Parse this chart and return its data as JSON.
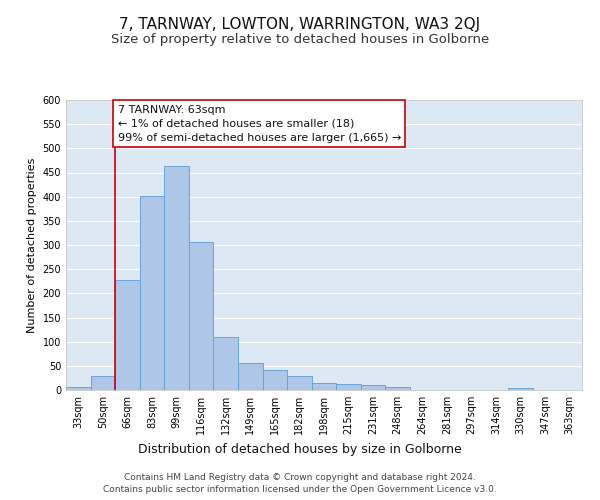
{
  "title": "7, TARNWAY, LOWTON, WARRINGTON, WA3 2QJ",
  "subtitle": "Size of property relative to detached houses in Golborne",
  "xlabel": "Distribution of detached houses by size in Golborne",
  "ylabel": "Number of detached properties",
  "footer_line1": "Contains HM Land Registry data © Crown copyright and database right 2024.",
  "footer_line2": "Contains public sector information licensed under the Open Government Licence v3.0.",
  "annotation_line1": "7 TARNWAY: 63sqm",
  "annotation_line2": "← 1% of detached houses are smaller (18)",
  "annotation_line3": "99% of semi-detached houses are larger (1,665) →",
  "categories": [
    "33sqm",
    "50sqm",
    "66sqm",
    "83sqm",
    "99sqm",
    "116sqm",
    "132sqm",
    "149sqm",
    "165sqm",
    "182sqm",
    "198sqm",
    "215sqm",
    "231sqm",
    "248sqm",
    "264sqm",
    "281sqm",
    "297sqm",
    "314sqm",
    "330sqm",
    "347sqm",
    "363sqm"
  ],
  "values": [
    7,
    30,
    228,
    401,
    463,
    306,
    109,
    55,
    41,
    28,
    15,
    13,
    10,
    7,
    0,
    0,
    0,
    0,
    5,
    0,
    0
  ],
  "bar_color": "#aec6e8",
  "bar_edge_color": "#5a9fd4",
  "reference_line_x": 1.5,
  "reference_line_color": "#cc0000",
  "annotation_box_edge_color": "#cc0000",
  "annotation_box_face_color": "#ffffff",
  "background_color": "#ffffff",
  "plot_bg_color": "#dde8f5",
  "grid_color": "#ffffff",
  "ylim": [
    0,
    600
  ],
  "yticks": [
    0,
    50,
    100,
    150,
    200,
    250,
    300,
    350,
    400,
    450,
    500,
    550,
    600
  ],
  "title_fontsize": 11,
  "subtitle_fontsize": 9.5,
  "ylabel_fontsize": 8,
  "xlabel_fontsize": 9,
  "tick_fontsize": 7,
  "annotation_fontsize": 8,
  "footer_fontsize": 6.5
}
